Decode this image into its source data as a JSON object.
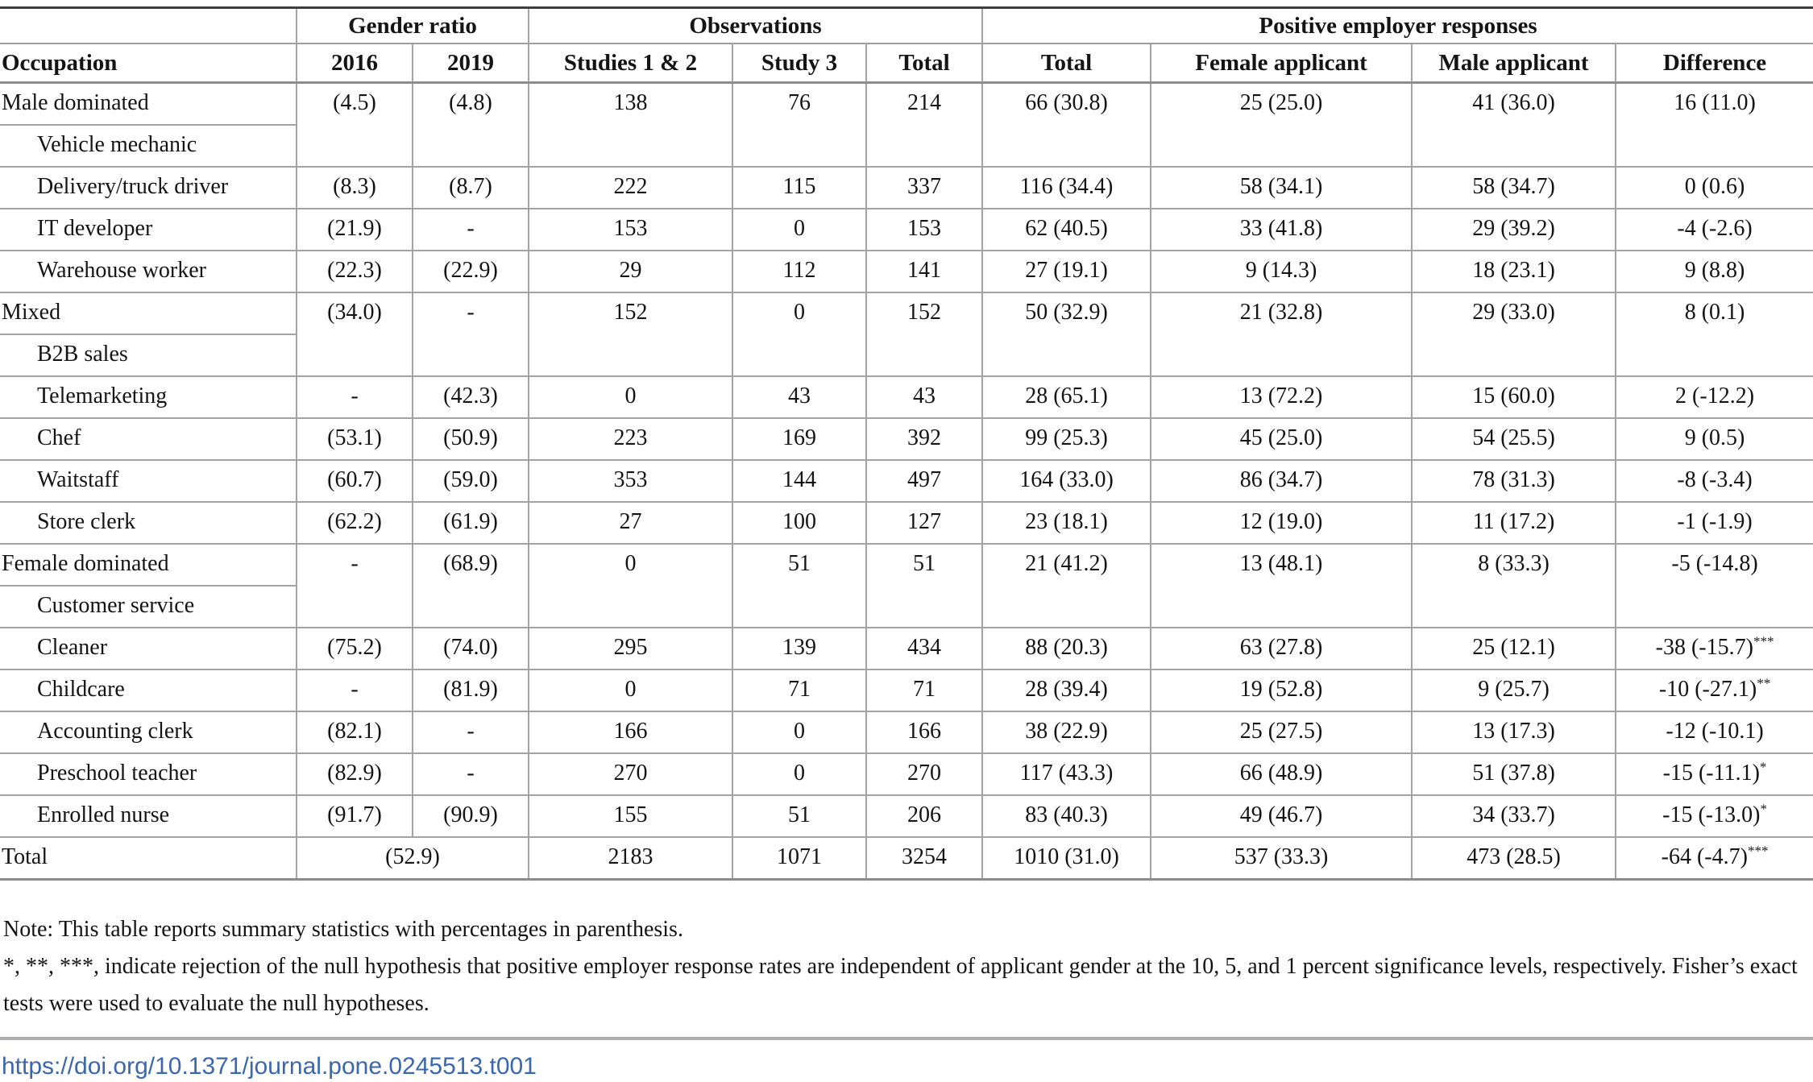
{
  "table": {
    "group_headers": {
      "gender_ratio": "Gender ratio",
      "observations": "Observations",
      "responses": "Positive employer responses"
    },
    "column_headers": [
      "Occupation",
      "2016",
      "2019",
      "Studies 1 & 2",
      "Study 3",
      "Total",
      "Total",
      "Female applicant",
      "Male applicant",
      "Difference"
    ],
    "rows": [
      {
        "type": "pair",
        "label": "Male dominated",
        "sublabel": "Vehicle mechanic",
        "cells": [
          "(4.5)",
          "(4.8)",
          "138",
          "76",
          "214",
          "66 (30.8)",
          "25 (25.0)",
          "41 (36.0)"
        ],
        "diff": "16 (11.0)",
        "diff_sup": ""
      },
      {
        "type": "single",
        "label": "Delivery/truck driver",
        "cells": [
          "(8.3)",
          "(8.7)",
          "222",
          "115",
          "337",
          "116 (34.4)",
          "58 (34.1)",
          "58 (34.7)"
        ],
        "diff": "0 (0.6)",
        "diff_sup": ""
      },
      {
        "type": "single",
        "label": "IT developer",
        "cells": [
          "(21.9)",
          "-",
          "153",
          "0",
          "153",
          "62 (40.5)",
          "33 (41.8)",
          "29 (39.2)"
        ],
        "diff": "-4 (-2.6)",
        "diff_sup": ""
      },
      {
        "type": "single",
        "label": "Warehouse worker",
        "cells": [
          "(22.3)",
          "(22.9)",
          "29",
          "112",
          "141",
          "27 (19.1)",
          "9 (14.3)",
          "18 (23.1)"
        ],
        "diff": "9 (8.8)",
        "diff_sup": ""
      },
      {
        "type": "pair",
        "label": "Mixed",
        "sublabel": "B2B sales",
        "cells": [
          "(34.0)",
          "-",
          "152",
          "0",
          "152",
          "50 (32.9)",
          "21 (32.8)",
          "29 (33.0)"
        ],
        "diff": "8 (0.1)",
        "diff_sup": ""
      },
      {
        "type": "single",
        "label": "Telemarketing",
        "cells": [
          "-",
          "(42.3)",
          "0",
          "43",
          "43",
          "28 (65.1)",
          "13 (72.2)",
          "15 (60.0)"
        ],
        "diff": "2 (-12.2)",
        "diff_sup": ""
      },
      {
        "type": "single",
        "label": "Chef",
        "cells": [
          "(53.1)",
          "(50.9)",
          "223",
          "169",
          "392",
          "99 (25.3)",
          "45 (25.0)",
          "54 (25.5)"
        ],
        "diff": "9 (0.5)",
        "diff_sup": ""
      },
      {
        "type": "single",
        "label": "Waitstaff",
        "cells": [
          "(60.7)",
          "(59.0)",
          "353",
          "144",
          "497",
          "164 (33.0)",
          "86 (34.7)",
          "78 (31.3)"
        ],
        "diff": "-8 (-3.4)",
        "diff_sup": ""
      },
      {
        "type": "single",
        "label": "Store clerk",
        "cells": [
          "(62.2)",
          "(61.9)",
          "27",
          "100",
          "127",
          "23 (18.1)",
          "12 (19.0)",
          "11 (17.2)"
        ],
        "diff": "-1 (-1.9)",
        "diff_sup": ""
      },
      {
        "type": "pair",
        "label": "Female dominated",
        "sublabel": "Customer service",
        "cells": [
          "-",
          "(68.9)",
          "0",
          "51",
          "51",
          "21 (41.2)",
          "13 (48.1)",
          "8 (33.3)"
        ],
        "diff": "-5 (-14.8)",
        "diff_sup": ""
      },
      {
        "type": "single",
        "label": "Cleaner",
        "cells": [
          "(75.2)",
          "(74.0)",
          "295",
          "139",
          "434",
          "88 (20.3)",
          "63 (27.8)",
          "25 (12.1)"
        ],
        "diff": "-38 (-15.7)",
        "diff_sup": "***"
      },
      {
        "type": "single",
        "label": "Childcare",
        "cells": [
          "-",
          "(81.9)",
          "0",
          "71",
          "71",
          "28 (39.4)",
          "19 (52.8)",
          "9 (25.7)"
        ],
        "diff": "-10 (-27.1)",
        "diff_sup": "**"
      },
      {
        "type": "single",
        "label": "Accounting clerk",
        "cells": [
          "(82.1)",
          "-",
          "166",
          "0",
          "166",
          "38 (22.9)",
          "25 (27.5)",
          "13 (17.3)"
        ],
        "diff": "-12 (-10.1)",
        "diff_sup": ""
      },
      {
        "type": "single",
        "label": "Preschool teacher",
        "cells": [
          "(82.9)",
          "-",
          "270",
          "0",
          "270",
          "117 (43.3)",
          "66 (48.9)",
          "51 (37.8)"
        ],
        "diff": "-15 (-11.1)",
        "diff_sup": "*"
      },
      {
        "type": "single",
        "label": "Enrolled nurse",
        "cells": [
          "(91.7)",
          "(90.9)",
          "155",
          "51",
          "206",
          "83 (40.3)",
          "49 (46.7)",
          "34 (33.7)"
        ],
        "diff": "-15 (-13.0)",
        "diff_sup": "*"
      },
      {
        "type": "total",
        "label": "Total",
        "gender_ratio": "(52.9)",
        "cells": [
          "2183",
          "1071",
          "3254",
          "1010 (31.0)",
          "537 (33.3)",
          "473 (28.5)"
        ],
        "diff": "-64 (-4.7)",
        "diff_sup": "***"
      }
    ]
  },
  "footnotes": {
    "note1": "Note: This table reports summary statistics with percentages in parenthesis.",
    "note2": "*, **, ***, indicate rejection of the null hypothesis that positive employer response rates are independent of applicant gender at the 10, 5, and 1 percent significance levels, respectively. Fisher’s exact tests were used to evaluate the null hypotheses."
  },
  "link": {
    "doi_url": "https://doi.org/10.1371/journal.pone.0245513.t001"
  }
}
